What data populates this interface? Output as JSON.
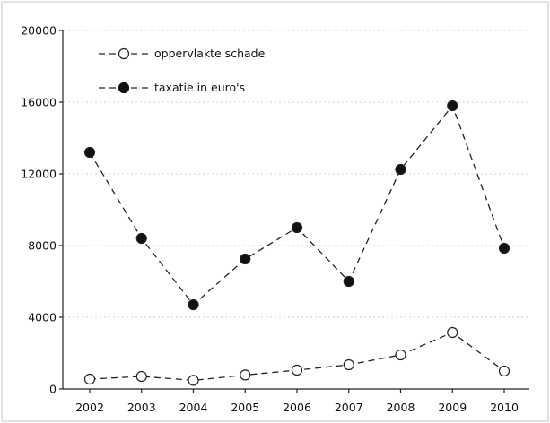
{
  "chart_data": {
    "type": "line",
    "x": [
      "2002",
      "2003",
      "2004",
      "2005",
      "2006",
      "2007",
      "2008",
      "2009",
      "2010"
    ],
    "series": [
      {
        "name": "oppervlakte schade",
        "marker": "open-circle",
        "values": [
          550,
          700,
          480,
          780,
          1050,
          1350,
          1900,
          3150,
          1000
        ]
      },
      {
        "name": "taxatie in euro's",
        "marker": "filled-circle",
        "values": [
          13200,
          8400,
          4700,
          7250,
          9000,
          6000,
          12250,
          15800,
          7850
        ]
      }
    ],
    "yticks": [
      "0",
      "4000",
      "8000",
      "12000",
      "16000",
      "20000"
    ],
    "ylim": [
      0,
      20000
    ],
    "grid": "horizontal dotted",
    "legend_position": "top-left",
    "title": "",
    "xlabel": "",
    "ylabel": "",
    "colors": {
      "line": "#222222",
      "grid": "#cfcfcf",
      "frame": "#d9d9d9"
    }
  }
}
